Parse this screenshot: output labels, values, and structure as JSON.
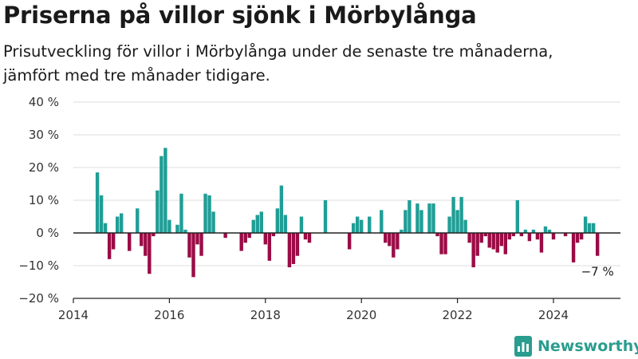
{
  "header": {
    "title": "Priserna på villor sjönk i Mörbylånga",
    "subtitle_line1": "Prisutveckling för villor i Mörbylånga under de senaste tre månaderna,",
    "subtitle_line2": "jämfört med tre månader tidigare."
  },
  "footer": {
    "brand_name": "Newsworthy",
    "logo_icon": "bar-chart-logo-icon"
  },
  "colors": {
    "positive": "#1f9e96",
    "negative": "#9b0b45",
    "grid": "#dcdcdc",
    "axis": "#222222",
    "brand": "#2a9d8f"
  },
  "chart_data": {
    "type": "bar",
    "title": "Priserna på villor sjönk i Mörbylånga",
    "xlabel": "",
    "ylabel": "",
    "ylim": [
      -20,
      40
    ],
    "xlim": [
      2014,
      2025.4
    ],
    "y_ticks": [
      {
        "value": 40,
        "label": "40 %"
      },
      {
        "value": 30,
        "label": "30 %"
      },
      {
        "value": 20,
        "label": "20 %"
      },
      {
        "value": 10,
        "label": "10 %"
      },
      {
        "value": 0,
        "label": "0 %"
      },
      {
        "value": -10,
        "label": "−10 %"
      },
      {
        "value": -20,
        "label": "−20 %"
      }
    ],
    "x_ticks": [
      {
        "value": 2014,
        "label": "2014"
      },
      {
        "value": 2016,
        "label": "2016"
      },
      {
        "value": 2018,
        "label": "2018"
      },
      {
        "value": 2020,
        "label": "2020"
      },
      {
        "value": 2022,
        "label": "2022"
      },
      {
        "value": 2024,
        "label": "2024"
      }
    ],
    "grid": true,
    "annotation": {
      "text": "−7 %"
    },
    "points": [
      {
        "x": "2014-07",
        "y": 18.5
      },
      {
        "x": "2014-08",
        "y": 11.5
      },
      {
        "x": "2014-09",
        "y": 3
      },
      {
        "x": "2014-10",
        "y": -8
      },
      {
        "x": "2014-11",
        "y": -5
      },
      {
        "x": "2014-12",
        "y": 5
      },
      {
        "x": "2015-01",
        "y": 6
      },
      {
        "x": "2015-03",
        "y": -5.5
      },
      {
        "x": "2015-05",
        "y": 7.5
      },
      {
        "x": "2015-06",
        "y": -4
      },
      {
        "x": "2015-07",
        "y": -7
      },
      {
        "x": "2015-08",
        "y": -12.5
      },
      {
        "x": "2015-09",
        "y": -1
      },
      {
        "x": "2015-10",
        "y": 13
      },
      {
        "x": "2015-11",
        "y": 23.5
      },
      {
        "x": "2015-12",
        "y": 26
      },
      {
        "x": "2016-01",
        "y": 4
      },
      {
        "x": "2016-03",
        "y": 2.5
      },
      {
        "x": "2016-04",
        "y": 12
      },
      {
        "x": "2016-05",
        "y": 1
      },
      {
        "x": "2016-06",
        "y": -7.5
      },
      {
        "x": "2016-07",
        "y": -13.5
      },
      {
        "x": "2016-08",
        "y": -3.5
      },
      {
        "x": "2016-09",
        "y": -7
      },
      {
        "x": "2016-10",
        "y": 12
      },
      {
        "x": "2016-11",
        "y": 11.5
      },
      {
        "x": "2016-12",
        "y": 6.5
      },
      {
        "x": "2017-03",
        "y": -1.5
      },
      {
        "x": "2017-07",
        "y": -5.5
      },
      {
        "x": "2017-08",
        "y": -3
      },
      {
        "x": "2017-09",
        "y": -1.5
      },
      {
        "x": "2017-10",
        "y": 4
      },
      {
        "x": "2017-11",
        "y": 5.5
      },
      {
        "x": "2017-12",
        "y": 6.5
      },
      {
        "x": "2018-01",
        "y": -3.5
      },
      {
        "x": "2018-02",
        "y": -8.5
      },
      {
        "x": "2018-03",
        "y": -1
      },
      {
        "x": "2018-04",
        "y": 7.5
      },
      {
        "x": "2018-05",
        "y": 14.5
      },
      {
        "x": "2018-06",
        "y": 5.5
      },
      {
        "x": "2018-07",
        "y": -10.5
      },
      {
        "x": "2018-08",
        "y": -9.5
      },
      {
        "x": "2018-09",
        "y": -7
      },
      {
        "x": "2018-10",
        "y": 5
      },
      {
        "x": "2018-11",
        "y": -2
      },
      {
        "x": "2018-12",
        "y": -3
      },
      {
        "x": "2019-04",
        "y": 10
      },
      {
        "x": "2019-10",
        "y": -5
      },
      {
        "x": "2019-11",
        "y": 3
      },
      {
        "x": "2019-12",
        "y": 5
      },
      {
        "x": "2020-01",
        "y": 4
      },
      {
        "x": "2020-03",
        "y": 5
      },
      {
        "x": "2020-06",
        "y": 7
      },
      {
        "x": "2020-07",
        "y": -3
      },
      {
        "x": "2020-08",
        "y": -4
      },
      {
        "x": "2020-09",
        "y": -7.5
      },
      {
        "x": "2020-10",
        "y": -5
      },
      {
        "x": "2020-11",
        "y": 1
      },
      {
        "x": "2020-12",
        "y": 7
      },
      {
        "x": "2021-01",
        "y": 10
      },
      {
        "x": "2021-03",
        "y": 9
      },
      {
        "x": "2021-04",
        "y": 7
      },
      {
        "x": "2021-06",
        "y": 9
      },
      {
        "x": "2021-07",
        "y": 9
      },
      {
        "x": "2021-08",
        "y": -1
      },
      {
        "x": "2021-09",
        "y": -6.5
      },
      {
        "x": "2021-10",
        "y": -6.5
      },
      {
        "x": "2021-11",
        "y": 5
      },
      {
        "x": "2021-12",
        "y": 11
      },
      {
        "x": "2022-01",
        "y": 7
      },
      {
        "x": "2022-02",
        "y": 11
      },
      {
        "x": "2022-03",
        "y": 4
      },
      {
        "x": "2022-04",
        "y": -3
      },
      {
        "x": "2022-05",
        "y": -10.5
      },
      {
        "x": "2022-06",
        "y": -7
      },
      {
        "x": "2022-07",
        "y": -3
      },
      {
        "x": "2022-08",
        "y": -1
      },
      {
        "x": "2022-09",
        "y": -4.5
      },
      {
        "x": "2022-10",
        "y": -5
      },
      {
        "x": "2022-11",
        "y": -6
      },
      {
        "x": "2022-12",
        "y": -4
      },
      {
        "x": "2023-01",
        "y": -6.5
      },
      {
        "x": "2023-02",
        "y": -2
      },
      {
        "x": "2023-03",
        "y": -1
      },
      {
        "x": "2023-04",
        "y": 10
      },
      {
        "x": "2023-05",
        "y": -1
      },
      {
        "x": "2023-06",
        "y": 1
      },
      {
        "x": "2023-07",
        "y": -2.5
      },
      {
        "x": "2023-08",
        "y": 1
      },
      {
        "x": "2023-09",
        "y": -2
      },
      {
        "x": "2023-10",
        "y": -6
      },
      {
        "x": "2023-11",
        "y": 2
      },
      {
        "x": "2023-12",
        "y": 1
      },
      {
        "x": "2024-01",
        "y": -2
      },
      {
        "x": "2024-04",
        "y": -1
      },
      {
        "x": "2024-06",
        "y": -9
      },
      {
        "x": "2024-07",
        "y": -3
      },
      {
        "x": "2024-08",
        "y": -2
      },
      {
        "x": "2024-09",
        "y": 5
      },
      {
        "x": "2024-10",
        "y": 3
      },
      {
        "x": "2024-11",
        "y": 3
      },
      {
        "x": "2024-12",
        "y": -7
      }
    ]
  }
}
